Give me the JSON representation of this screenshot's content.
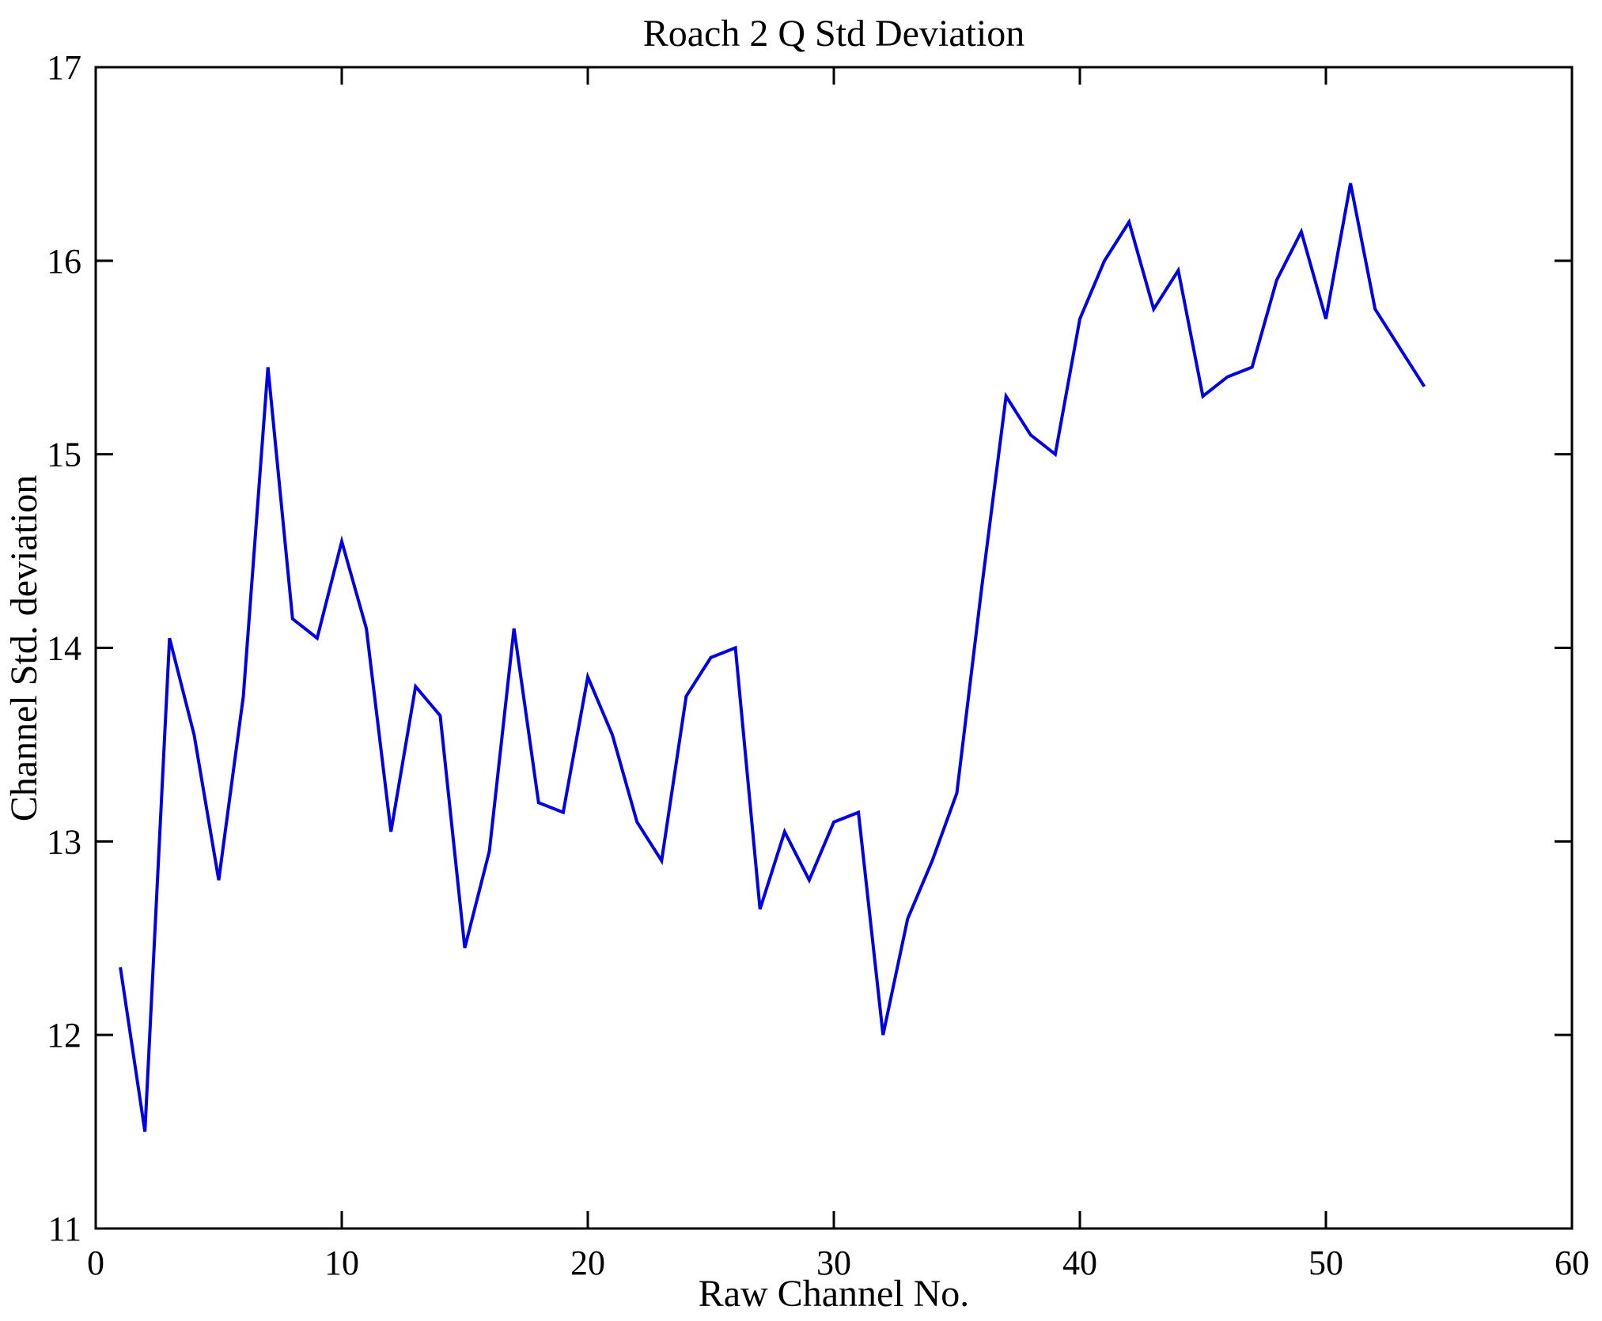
{
  "chart_data": {
    "type": "line",
    "title": "Roach 2 Q Std Deviation",
    "xlabel": "Raw Channel No.",
    "ylabel": "Channel Std. deviation",
    "xlim": [
      0,
      60
    ],
    "ylim": [
      11,
      17
    ],
    "xticks": [
      0,
      10,
      20,
      30,
      40,
      50,
      60
    ],
    "yticks": [
      11,
      12,
      13,
      14,
      15,
      16,
      17
    ],
    "grid": false,
    "legend": null,
    "line_color": "#0000E6",
    "axis_color": "#000000",
    "background_color": "#ffffff",
    "x": [
      1,
      2,
      3,
      4,
      5,
      6,
      7,
      8,
      9,
      10,
      11,
      12,
      13,
      14,
      15,
      16,
      17,
      18,
      19,
      20,
      21,
      22,
      23,
      24,
      25,
      26,
      27,
      28,
      29,
      30,
      31,
      32,
      33,
      34,
      35,
      36,
      37,
      38,
      39,
      40,
      41,
      42,
      43,
      44,
      45,
      46,
      47,
      48,
      49,
      50,
      51,
      52,
      53,
      54
    ],
    "values": [
      12.35,
      11.5,
      14.05,
      13.55,
      12.8,
      13.75,
      15.45,
      14.15,
      14.05,
      14.55,
      14.1,
      13.05,
      13.8,
      13.65,
      12.45,
      12.95,
      14.1,
      13.2,
      13.15,
      13.85,
      13.55,
      13.1,
      12.9,
      13.75,
      13.95,
      14.0,
      12.65,
      13.05,
      12.8,
      13.1,
      13.15,
      12.0,
      12.6,
      12.9,
      13.25,
      14.3,
      15.3,
      15.1,
      15.0,
      15.7,
      16.0,
      16.2,
      15.75,
      15.95,
      15.3,
      15.4,
      15.45,
      15.9,
      16.15,
      15.7,
      16.4,
      15.75,
      15.55,
      15.35
    ]
  }
}
